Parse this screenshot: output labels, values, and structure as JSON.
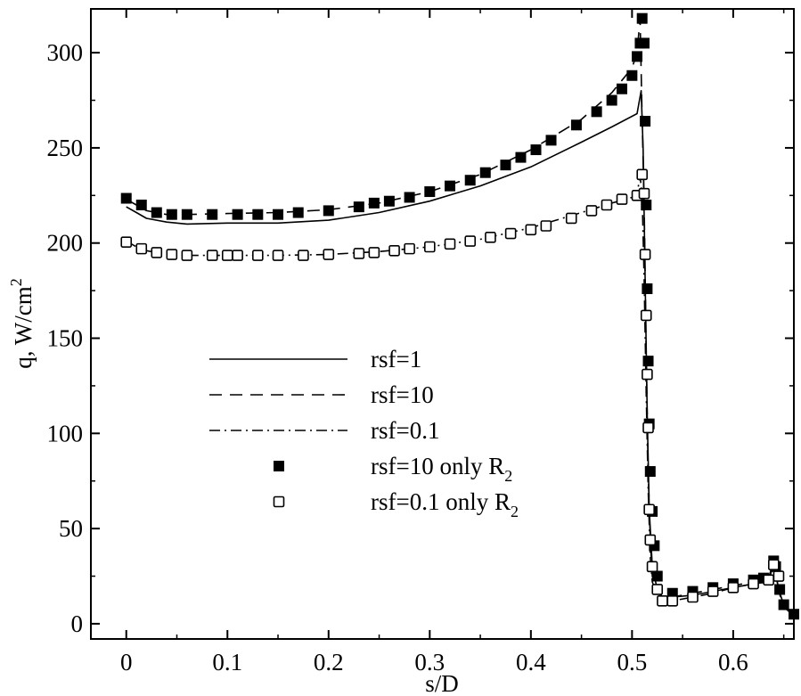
{
  "chart_data": {
    "type": "line",
    "title": "",
    "xlabel": "s/D",
    "ylabel": "q, W/cm",
    "ylabel_sup": "2",
    "xlim": [
      -0.035,
      0.66
    ],
    "ylim": [
      -8,
      323
    ],
    "x_ticks": [
      0,
      0.1,
      0.2,
      0.3,
      0.4,
      0.5,
      0.6
    ],
    "x_tick_labels": [
      "0",
      "0.1",
      "0.2",
      "0.3",
      "0.4",
      "0.5",
      "0.6"
    ],
    "y_ticks": [
      0,
      50,
      100,
      150,
      200,
      250,
      300
    ],
    "y_tick_labels": [
      "0",
      "50",
      "100",
      "150",
      "200",
      "250",
      "300"
    ],
    "grid": false,
    "legend_position": "center-left",
    "series": [
      {
        "name": "rsf=1",
        "legend_label": "rsf=1",
        "legend_sub": "",
        "style": "solid",
        "x": [
          0,
          0.01,
          0.02,
          0.04,
          0.06,
          0.1,
          0.15,
          0.2,
          0.25,
          0.3,
          0.35,
          0.4,
          0.45,
          0.48,
          0.505,
          0.509,
          0.511,
          0.513,
          0.515,
          0.517,
          0.52,
          0.525,
          0.53,
          0.54,
          0.56,
          0.58,
          0.6,
          0.62,
          0.635,
          0.64,
          0.645,
          0.65,
          0.66
        ],
        "y": [
          219,
          216,
          213,
          211,
          210,
          210.5,
          210.5,
          212,
          216,
          222,
          230,
          240,
          253,
          261,
          268,
          280,
          250,
          180,
          110,
          60,
          30,
          18,
          14,
          14,
          15,
          17,
          19,
          21,
          22,
          32,
          18,
          10,
          5
        ]
      },
      {
        "name": "rsf=10",
        "legend_label": "rsf=10",
        "legend_sub": "",
        "style": "dashed",
        "x": [
          0,
          0.01,
          0.02,
          0.04,
          0.06,
          0.1,
          0.15,
          0.2,
          0.25,
          0.3,
          0.35,
          0.4,
          0.45,
          0.48,
          0.5,
          0.505,
          0.508,
          0.51,
          0.512,
          0.514,
          0.516,
          0.518,
          0.52,
          0.525,
          0.53,
          0.54,
          0.56,
          0.58,
          0.6,
          0.62,
          0.635,
          0.64,
          0.645,
          0.65,
          0.66
        ],
        "y": [
          223,
          220,
          217,
          215,
          215,
          215.5,
          216,
          217.5,
          221,
          227,
          236,
          249,
          265,
          279,
          292,
          300,
          318,
          265,
          220,
          140,
          80,
          45,
          25,
          17,
          14,
          14,
          16,
          18,
          20,
          22,
          24,
          33,
          17,
          9,
          4
        ]
      },
      {
        "name": "rsf=0.1",
        "legend_label": "rsf=0.1",
        "legend_sub": "",
        "style": "dashdot",
        "x": [
          0,
          0.01,
          0.02,
          0.04,
          0.06,
          0.1,
          0.15,
          0.2,
          0.25,
          0.3,
          0.35,
          0.4,
          0.45,
          0.48,
          0.5,
          0.505,
          0.508,
          0.51,
          0.512,
          0.514,
          0.516,
          0.518,
          0.52,
          0.525,
          0.53,
          0.54,
          0.56,
          0.58,
          0.6,
          0.62,
          0.635,
          0.64,
          0.645,
          0.65,
          0.66
        ],
        "y": [
          201,
          198,
          196,
          194,
          193.5,
          193.5,
          193.5,
          194,
          195.5,
          198,
          202,
          208,
          216,
          221,
          224,
          226,
          235,
          225,
          180,
          120,
          70,
          35,
          22,
          15,
          12,
          12,
          14,
          16,
          19,
          21,
          22,
          32,
          18,
          9,
          4
        ]
      },
      {
        "name": "rsf=10 only R2",
        "legend_label": "rsf=10 only R",
        "legend_sub": "2",
        "style": "filled-square",
        "x": [
          0,
          0.015,
          0.03,
          0.045,
          0.06,
          0.085,
          0.11,
          0.13,
          0.15,
          0.17,
          0.2,
          0.23,
          0.245,
          0.26,
          0.28,
          0.3,
          0.32,
          0.34,
          0.355,
          0.375,
          0.39,
          0.405,
          0.42,
          0.445,
          0.465,
          0.48,
          0.49,
          0.5,
          0.505,
          0.508,
          0.51,
          0.512,
          0.513,
          0.514,
          0.515,
          0.516,
          0.517,
          0.518,
          0.52,
          0.522,
          0.525,
          0.54,
          0.56,
          0.58,
          0.6,
          0.62,
          0.63,
          0.64,
          0.642,
          0.646,
          0.65,
          0.66
        ],
        "y": [
          223.5,
          220,
          216,
          215,
          215,
          215,
          215,
          215,
          215,
          216,
          217,
          219,
          221,
          222,
          224,
          227,
          230,
          233,
          237,
          241,
          245,
          249,
          254,
          262,
          269,
          275,
          281,
          288,
          298,
          305,
          318,
          305,
          264,
          220,
          176,
          138,
          105,
          80,
          59,
          41,
          25,
          16,
          17,
          19,
          21,
          23,
          24,
          33,
          30,
          18,
          10,
          5
        ]
      },
      {
        "name": "rsf=0.1 only R2",
        "legend_label": "rsf=0.1 only R",
        "legend_sub": "2",
        "style": "open-square",
        "x": [
          0,
          0.015,
          0.03,
          0.045,
          0.06,
          0.085,
          0.1,
          0.11,
          0.13,
          0.15,
          0.175,
          0.2,
          0.23,
          0.245,
          0.265,
          0.28,
          0.3,
          0.32,
          0.34,
          0.36,
          0.38,
          0.4,
          0.415,
          0.44,
          0.46,
          0.475,
          0.49,
          0.505,
          0.51,
          0.512,
          0.513,
          0.514,
          0.515,
          0.516,
          0.517,
          0.518,
          0.52,
          0.525,
          0.53,
          0.54,
          0.56,
          0.58,
          0.6,
          0.62,
          0.635,
          0.64,
          0.645
        ],
        "y": [
          200.5,
          197,
          195,
          194,
          193.5,
          193.5,
          193.5,
          193.5,
          193.5,
          193.5,
          193.5,
          194,
          194.5,
          195,
          196,
          197,
          198,
          199.5,
          201,
          203,
          205,
          207,
          209,
          213,
          217,
          220,
          223,
          225,
          236,
          226,
          194,
          162,
          131,
          103,
          60,
          44,
          30,
          18,
          12,
          12,
          14,
          17,
          19,
          21,
          23,
          31,
          25
        ]
      }
    ]
  }
}
